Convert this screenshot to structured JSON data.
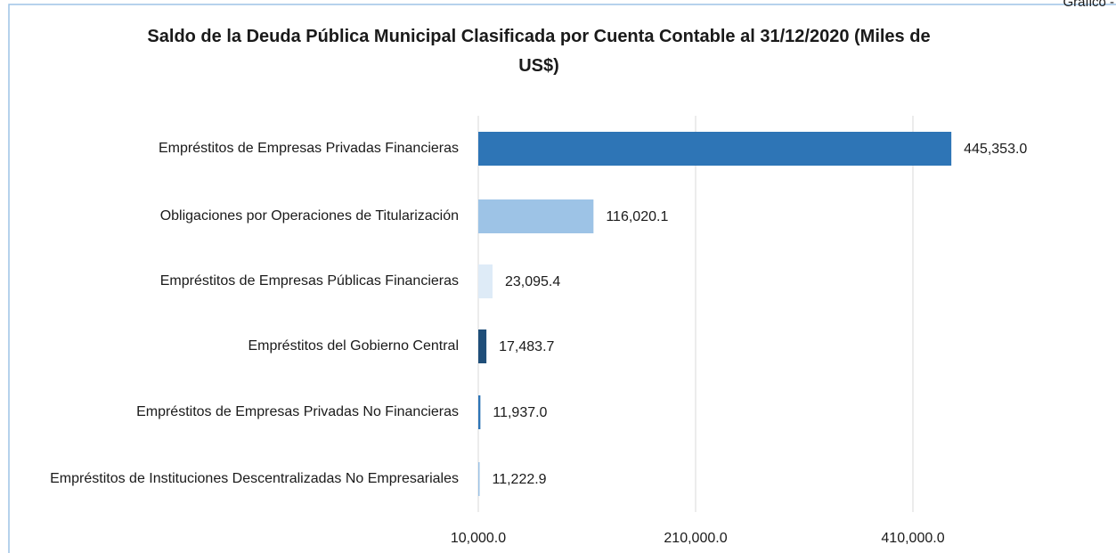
{
  "corner_label": "Gráfico -",
  "chart_data": {
    "type": "bar",
    "orientation": "horizontal",
    "title": "Saldo de la Deuda Pública Municipal Clasificada por Cuenta Contable al 31/12/2020 (Miles de US$)",
    "categories": [
      "Empréstitos de Empresas Privadas Financieras",
      "Obligaciones por Operaciones de Titularización",
      "Empréstitos de Empresas Públicas Financieras",
      "Empréstitos del Gobierno Central",
      "Empréstitos de Empresas Privadas No Financieras",
      "Empréstitos de Instituciones Descentralizadas No Empresariales"
    ],
    "values": [
      445353.0,
      116020.1,
      23095.4,
      17483.7,
      11937.0,
      11222.9
    ],
    "value_labels": [
      "445,353.0",
      "116,020.1",
      "23,095.4",
      "17,483.7",
      "11,937.0",
      "11,222.9"
    ],
    "colors": [
      "#2e75b6",
      "#9dc3e6",
      "#deebf7",
      "#1f4e79",
      "#2e75b6",
      "#9dc3e6"
    ],
    "xlim": [
      10000,
      560000
    ],
    "xticks": [
      {
        "value": 10000,
        "label": "10,000.0"
      },
      {
        "value": 210000,
        "label": "210,000.0"
      },
      {
        "value": 410000,
        "label": "410,000.0"
      }
    ],
    "grid": true
  }
}
